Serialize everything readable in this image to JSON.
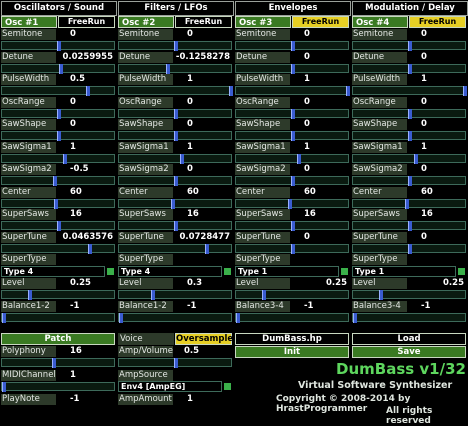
{
  "tabs": [
    "Oscillators / Sound",
    "Filters / LFOs",
    "Envelopes",
    "Modulation / Delay"
  ],
  "oscs": [
    {
      "label": "Osc #1",
      "btn": "FreeRun",
      "btn_on": false,
      "params": [
        {
          "name": "Semitone",
          "value": "0",
          "thumb": 0.5
        },
        {
          "name": "Detune",
          "value": "0.0259955",
          "thumb": 0.52,
          "align": "r"
        },
        {
          "name": "PulseWidth",
          "value": "0.5",
          "thumb": 0.76
        },
        {
          "name": "OscRange",
          "value": "0",
          "thumb": 0.5
        },
        {
          "name": "SawShape",
          "value": "0",
          "thumb": 0.5
        },
        {
          "name": "SawSigma1",
          "value": "1",
          "thumb": 0.55
        },
        {
          "name": "SawSigma2",
          "value": "-0.5",
          "thumb": 0.46
        },
        {
          "name": "Center",
          "value": "60",
          "thumb": 0.47,
          "align": "c"
        },
        {
          "name": "SuperSaws",
          "value": "16",
          "thumb": 0.5
        },
        {
          "name": "SuperTune",
          "value": "0.0463576",
          "thumb": 0.78,
          "align": "r"
        }
      ],
      "supertype_label": "SuperType",
      "supertype": "Type 4",
      "level": {
        "name": "Level",
        "value": "0.25",
        "thumb": 0.24,
        "align": "c"
      },
      "balance": {
        "name": "Balance1-2",
        "value": "-1",
        "thumb": 0.0,
        "align": "c"
      }
    },
    {
      "label": "Osc #2",
      "btn": "FreeRun",
      "btn_on": false,
      "params": [
        {
          "name": "Semitone",
          "value": "0",
          "thumb": 0.5
        },
        {
          "name": "Detune",
          "value": "-0.1258278",
          "thumb": 0.43,
          "align": "r"
        },
        {
          "name": "PulseWidth",
          "value": "1",
          "thumb": 1.0
        },
        {
          "name": "OscRange",
          "value": "0",
          "thumb": 0.5
        },
        {
          "name": "SawShape",
          "value": "0",
          "thumb": 0.5
        },
        {
          "name": "SawSigma1",
          "value": "1",
          "thumb": 0.55
        },
        {
          "name": "SawSigma2",
          "value": "0",
          "thumb": 0.5
        },
        {
          "name": "Center",
          "value": "60",
          "thumb": 0.47,
          "align": "c"
        },
        {
          "name": "SuperSaws",
          "value": "16",
          "thumb": 0.5
        },
        {
          "name": "SuperTune",
          "value": "0.0728477",
          "thumb": 0.78,
          "align": "r"
        }
      ],
      "supertype_label": "SuperType",
      "supertype": "Type 4",
      "level": {
        "name": "Level",
        "value": "0.3",
        "thumb": 0.29,
        "align": "c"
      },
      "balance": {
        "name": "Balance1-2",
        "value": "-1",
        "thumb": 0.0,
        "align": "c"
      }
    },
    {
      "label": "Osc #3",
      "btn": "FreeRun",
      "btn_on": true,
      "params": [
        {
          "name": "Semitone",
          "value": "0",
          "thumb": 0.5
        },
        {
          "name": "Detune",
          "value": "0",
          "thumb": 0.5
        },
        {
          "name": "PulseWidth",
          "value": "1",
          "thumb": 1.0
        },
        {
          "name": "OscRange",
          "value": "0",
          "thumb": 0.5
        },
        {
          "name": "SawShape",
          "value": "0",
          "thumb": 0.5
        },
        {
          "name": "SawSigma1",
          "value": "1",
          "thumb": 0.55
        },
        {
          "name": "SawSigma2",
          "value": "0",
          "thumb": 0.5
        },
        {
          "name": "Center",
          "value": "60",
          "thumb": 0.47,
          "align": "c"
        },
        {
          "name": "SuperSaws",
          "value": "16",
          "thumb": 0.5
        },
        {
          "name": "SuperTune",
          "value": "0",
          "thumb": 0.5
        }
      ],
      "supertype_label": "SuperType",
      "supertype": "Type 1",
      "level": {
        "name": "Level",
        "value": "0.25",
        "thumb": 0.24,
        "align": "r"
      },
      "balance": {
        "name": "Balance3-4",
        "value": "-1",
        "thumb": 0.0,
        "align": "c"
      }
    },
    {
      "label": "Osc #4",
      "btn": "FreeRun",
      "btn_on": true,
      "params": [
        {
          "name": "Semitone",
          "value": "0",
          "thumb": 0.5
        },
        {
          "name": "Detune",
          "value": "0",
          "thumb": 0.5
        },
        {
          "name": "PulseWidth",
          "value": "1",
          "thumb": 1.0
        },
        {
          "name": "OscRange",
          "value": "0",
          "thumb": 0.5
        },
        {
          "name": "SawShape",
          "value": "0",
          "thumb": 0.5
        },
        {
          "name": "SawSigma1",
          "value": "1",
          "thumb": 0.55
        },
        {
          "name": "SawSigma2",
          "value": "0",
          "thumb": 0.5
        },
        {
          "name": "Center",
          "value": "60",
          "thumb": 0.47,
          "align": "c"
        },
        {
          "name": "SuperSaws",
          "value": "16",
          "thumb": 0.5
        },
        {
          "name": "SuperTune",
          "value": "0",
          "thumb": 0.5
        }
      ],
      "supertype_label": "SuperType",
      "supertype": "Type 1",
      "level": {
        "name": "Level",
        "value": "0.25",
        "thumb": 0.24,
        "align": "r"
      },
      "balance": {
        "name": "Balance3-4",
        "value": "-1",
        "thumb": 0.0,
        "align": "c"
      }
    }
  ],
  "bottom": {
    "patch": "Patch",
    "polyphony": {
      "name": "Polyphony",
      "value": "16",
      "thumb": 0.45
    },
    "midichannel": {
      "name": "MIDIChannel",
      "value": "1",
      "thumb": 0.0
    },
    "playnote": {
      "name": "PlayNote",
      "value": "-1"
    },
    "voice": "Voice",
    "oversample": "Oversample",
    "ampvolume": {
      "name": "Amp/Volume",
      "value": "0.5",
      "thumb": 0.5
    },
    "ampsource": "AmpSource",
    "ampsource_value": "Env4 [AmpEG]",
    "ampamount": {
      "name": "AmpAmount",
      "value": "1"
    },
    "file": "DumBass.hp",
    "init": "Init",
    "load": "Load",
    "save": "Save"
  },
  "branding": {
    "name": "DumBass v1/32",
    "subtitle": "Virtual Software Synthesizer",
    "copyright": "Copyright © 2008-2014 by HrastProgrammer",
    "rights": "All rights reserved"
  },
  "colors": {
    "accent": "#e6cf24",
    "group": "#3a7a22",
    "slider": "#3a5cd0",
    "text_green": "#5ed65e"
  }
}
